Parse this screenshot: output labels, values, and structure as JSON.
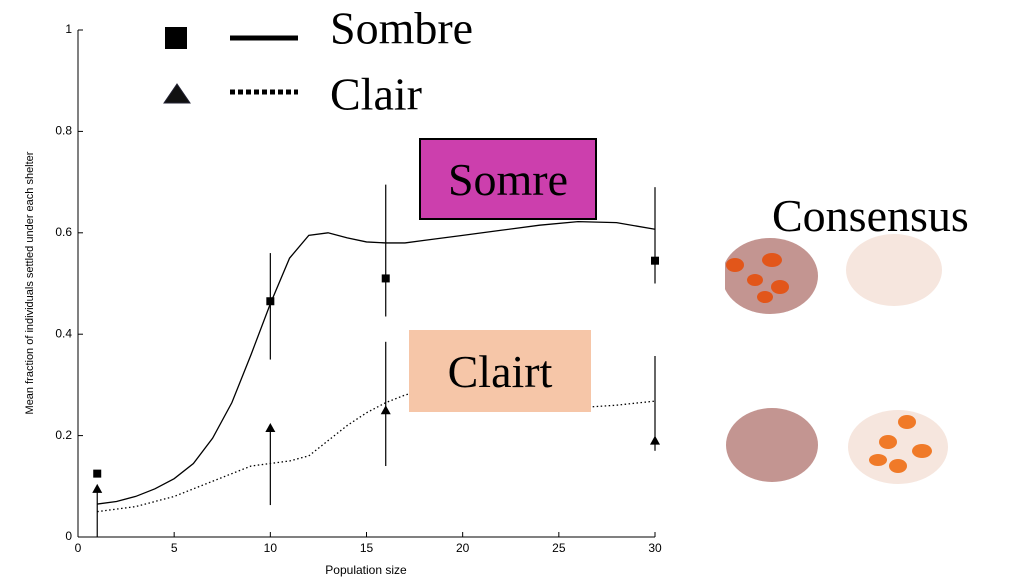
{
  "chart_data": {
    "type": "scatter",
    "xlabel": "Population size",
    "ylabel": "Mean fraction of individuals settled under each shelter",
    "xlim": [
      0,
      30
    ],
    "xticks": [
      0,
      5,
      10,
      15,
      20,
      25,
      30
    ],
    "ylim": [
      0,
      1
    ],
    "yticks": [
      0,
      0.2,
      0.4,
      0.6,
      0.8,
      1
    ],
    "series": [
      {
        "name": "Sombre",
        "color": "#000000",
        "marker": "square",
        "linestyle": "solid",
        "x": [
          1,
          10,
          16,
          30
        ],
        "values": [
          0.125,
          0.465,
          0.51,
          0.545
        ],
        "lower": [
          0.125,
          0.35,
          0.435,
          0.5
        ],
        "upper": [
          0.125,
          0.56,
          0.695,
          0.69
        ]
      },
      {
        "name": "Clair",
        "color": "#000000",
        "marker": "triangle",
        "linestyle": "dotted",
        "x": [
          1,
          10,
          16,
          30
        ],
        "values": [
          0.095,
          0.215,
          0.25,
          0.19
        ],
        "lower": [
          0,
          0.063,
          0.14,
          0.17
        ],
        "upper": [
          0.095,
          0.215,
          0.385,
          0.357
        ]
      }
    ],
    "curves": [
      {
        "x": [
          1,
          2,
          3,
          4,
          5,
          6,
          7,
          8,
          9,
          10,
          11,
          12,
          13,
          14,
          15,
          16,
          17,
          18,
          20,
          22,
          24,
          26,
          28,
          30
        ],
        "values": [
          0.065,
          0.07,
          0.08,
          0.095,
          0.115,
          0.145,
          0.195,
          0.265,
          0.36,
          0.46,
          0.55,
          0.595,
          0.6,
          0.59,
          0.582,
          0.58,
          0.58,
          0.585,
          0.595,
          0.605,
          0.615,
          0.622,
          0.62,
          0.607
        ]
      },
      {
        "x": [
          1,
          3,
          5,
          7,
          9,
          11,
          12,
          13,
          14,
          15,
          16,
          17,
          18,
          20,
          22,
          24,
          26,
          28,
          30
        ],
        "values": [
          0.05,
          0.06,
          0.08,
          0.11,
          0.14,
          0.15,
          0.16,
          0.19,
          0.22,
          0.245,
          0.265,
          0.28,
          0.29,
          0.285,
          0.275,
          0.265,
          0.255,
          0.26,
          0.268
        ]
      }
    ],
    "annotations": [
      "Somre",
      "Clairt",
      "Consensus"
    ]
  }
}
